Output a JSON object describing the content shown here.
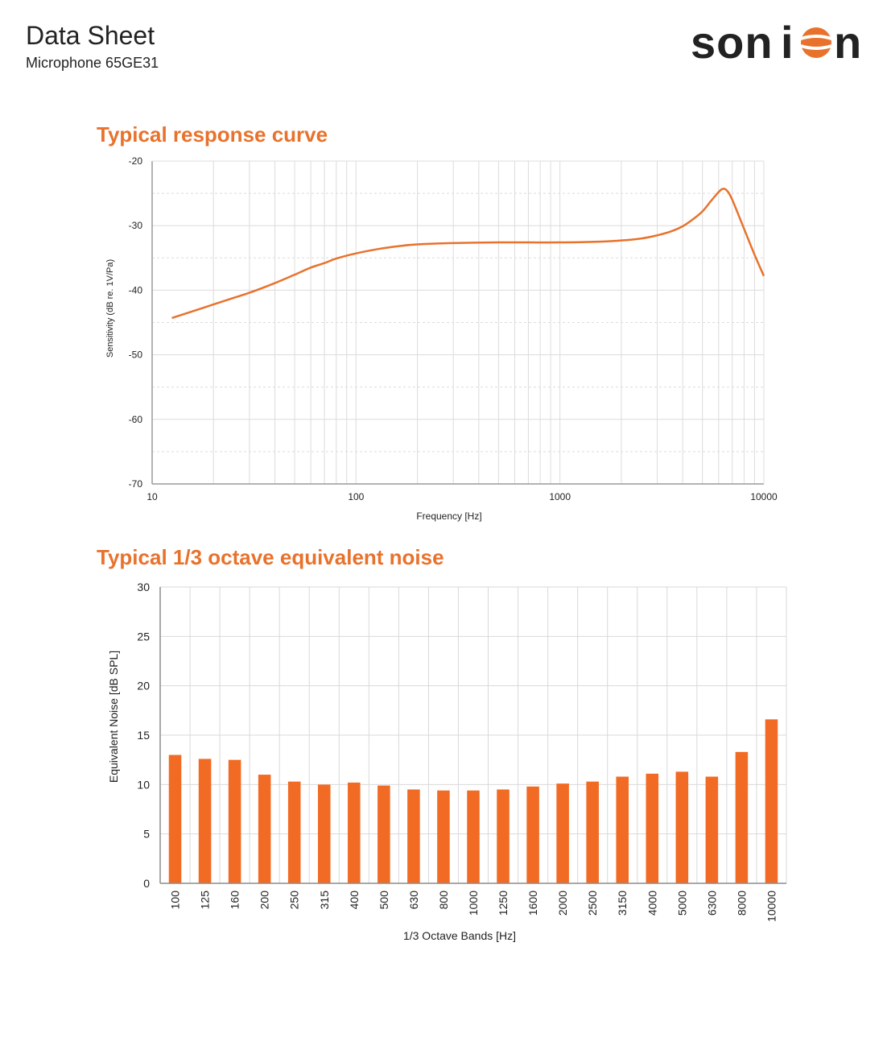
{
  "header": {
    "title": "Data Sheet",
    "subtitle": "Microphone 65GE31",
    "logo_text": "sonion"
  },
  "colors": {
    "accent": "#e8722c",
    "bar": "#f26b24",
    "grid": "#d9d9d9"
  },
  "charts": {
    "response": {
      "title": "Typical response curve",
      "xlabel": "Frequency [Hz]",
      "ylabel": "Sensitivity (dB re. 1V/Pa)"
    },
    "noise": {
      "title": "Typical 1/3 octave equivalent noise",
      "xlabel": "1/3 Octave Bands [Hz]",
      "ylabel": "Equivalent Noise  [dB SPL]"
    }
  },
  "chart_data": [
    {
      "type": "line",
      "title": "Typical response curve",
      "xlabel": "Frequency [Hz]",
      "ylabel": "Sensitivity (dB re. 1V/Pa)",
      "x_scale": "log",
      "xlim": [
        10,
        10000
      ],
      "ylim": [
        -70,
        -20
      ],
      "x_ticks": [
        "10",
        "100",
        "1000",
        "10000"
      ],
      "y_ticks": [
        "-20",
        "-30",
        "-40",
        "-50",
        "-60",
        "-70"
      ],
      "grid": true,
      "x": [
        12.5,
        15,
        20,
        25,
        30,
        40,
        50,
        60,
        70,
        80,
        100,
        130,
        160,
        200,
        300,
        500,
        700,
        1000,
        1500,
        2000,
        2500,
        3000,
        3500,
        4000,
        4500,
        5000,
        5500,
        6000,
        6300,
        6600,
        7000,
        8000,
        9000,
        10000
      ],
      "y": [
        -44.3,
        -43.5,
        -42.2,
        -41.2,
        -40.4,
        -38.9,
        -37.6,
        -36.5,
        -35.8,
        -35.1,
        -34.3,
        -33.6,
        -33.2,
        -32.9,
        -32.7,
        -32.6,
        -32.6,
        -32.6,
        -32.5,
        -32.3,
        -32.0,
        -31.5,
        -30.9,
        -30.1,
        -29.0,
        -27.8,
        -26.2,
        -24.8,
        -24.3,
        -24.6,
        -26.0,
        -30.5,
        -34.5,
        -37.8
      ]
    },
    {
      "type": "bar",
      "title": "Typical 1/3 octave equivalent noise",
      "xlabel": "1/3 Octave Bands [Hz]",
      "ylabel": "Equivalent Noise  [dB SPL]",
      "ylim": [
        0,
        30
      ],
      "y_ticks": [
        "0",
        "5",
        "10",
        "15",
        "20",
        "25",
        "30"
      ],
      "grid": true,
      "categories": [
        "100",
        "125",
        "160",
        "200",
        "250",
        "315",
        "400",
        "500",
        "630",
        "800",
        "1000",
        "1250",
        "1600",
        "2000",
        "2500",
        "3150",
        "4000",
        "5000",
        "6300",
        "8000",
        "10000"
      ],
      "values": [
        13.0,
        12.6,
        12.5,
        11.0,
        10.3,
        10.0,
        10.2,
        9.9,
        9.5,
        9.4,
        9.4,
        9.5,
        9.8,
        10.1,
        10.3,
        10.8,
        11.1,
        11.3,
        10.8,
        13.3,
        16.6
      ]
    }
  ]
}
